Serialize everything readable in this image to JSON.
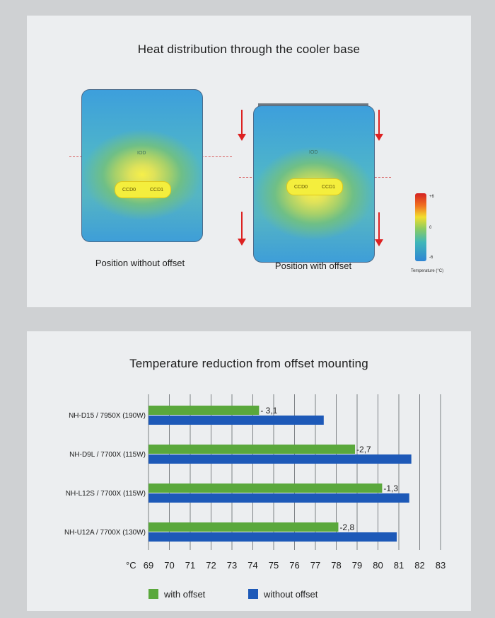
{
  "top_panel": {
    "title": "Heat distribution through the cooler base",
    "left_caption": "Position without offset",
    "right_caption": "Position with offset",
    "die_labels": {
      "io": "IOD",
      "ccd0": "CCD0",
      "ccd1": "CCD1"
    },
    "scale": {
      "max": "+6",
      "mid": "0",
      "min": "-6",
      "label": "Temperature (°C)"
    }
  },
  "chart_data": {
    "type": "bar",
    "title": "Temperature reduction from offset mounting",
    "orientation": "horizontal",
    "categories": [
      "NH-D15 / 7950X (190W)",
      "NH-D9L / 7700X (115W)",
      "NH-L12S / 7700X (115W)",
      "NH-U12A / 7700X (130W)"
    ],
    "series": [
      {
        "name": "with offset",
        "color": "#5aa83c",
        "values": [
          74.3,
          78.9,
          80.2,
          78.1
        ]
      },
      {
        "name": "without offset",
        "color": "#1d59b8",
        "values": [
          77.4,
          81.6,
          81.5,
          80.9
        ]
      }
    ],
    "data_labels": [
      "- 3,1",
      "-2,7",
      "-1,3",
      "-2,8"
    ],
    "x_unit_label": "°C",
    "ticks": [
      69,
      70,
      71,
      72,
      73,
      74,
      75,
      76,
      77,
      78,
      79,
      80,
      81,
      82,
      83
    ],
    "xlim": [
      69,
      83
    ],
    "grid": true,
    "legend_position": "bottom"
  }
}
